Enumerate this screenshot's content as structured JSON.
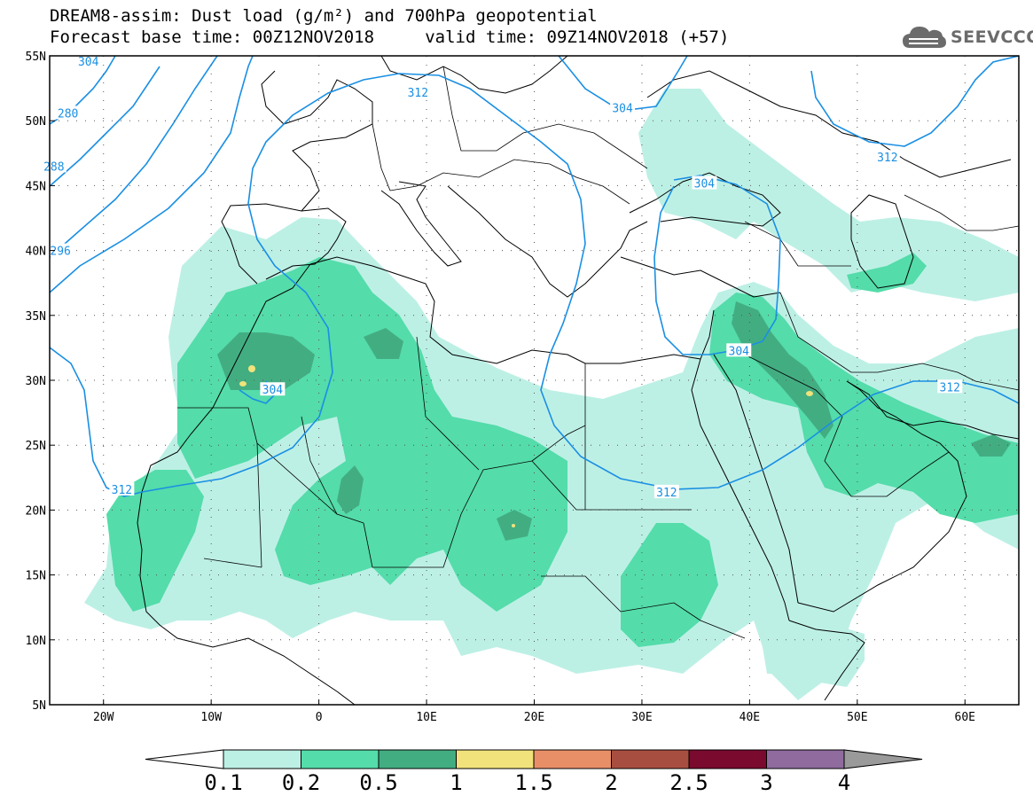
{
  "header": {
    "line1": "DREAM8-assim: Dust load (g/m²) and 700hPa geopotential",
    "line2": "Forecast base time: 00Z12NOV2018     valid time: 09Z14NOV2018 (+57)"
  },
  "logo": {
    "icon": "cloud-icon",
    "text": "SEEVCCC"
  },
  "map": {
    "lon_range": [
      -25,
      65
    ],
    "lat_range": [
      5,
      55
    ],
    "xticks": [
      {
        "v": -20,
        "label": "20W"
      },
      {
        "v": -10,
        "label": "10W"
      },
      {
        "v": 0,
        "label": "0"
      },
      {
        "v": 10,
        "label": "10E"
      },
      {
        "v": 20,
        "label": "20E"
      },
      {
        "v": 30,
        "label": "30E"
      },
      {
        "v": 40,
        "label": "40E"
      },
      {
        "v": 50,
        "label": "50E"
      },
      {
        "v": 60,
        "label": "60E"
      }
    ],
    "yticks": [
      {
        "v": 55,
        "label": "55N"
      },
      {
        "v": 50,
        "label": "50N"
      },
      {
        "v": 45,
        "label": "45N"
      },
      {
        "v": 40,
        "label": "40N"
      },
      {
        "v": 35,
        "label": "35N"
      },
      {
        "v": 30,
        "label": "30N"
      },
      {
        "v": 25,
        "label": "25N"
      },
      {
        "v": 20,
        "label": "20N"
      },
      {
        "v": 15,
        "label": "15N"
      },
      {
        "v": 10,
        "label": "10N"
      },
      {
        "v": 5,
        "label": "5N"
      }
    ],
    "grid": "dotted"
  },
  "contour_labels": [
    {
      "text": "304",
      "lon": -21.4,
      "lat": 54.6
    },
    {
      "text": "312",
      "lon": 9.2,
      "lat": 52.2
    },
    {
      "text": "304",
      "lon": 28.2,
      "lat": 51.0
    },
    {
      "text": "312",
      "lon": 52.8,
      "lat": 47.2
    },
    {
      "text": "280",
      "lon": -23.3,
      "lat": 50.6
    },
    {
      "text": "288",
      "lon": -24.6,
      "lat": 46.5
    },
    {
      "text": "296",
      "lon": -24.0,
      "lat": 40.0
    },
    {
      "text": "304",
      "lon": 35.8,
      "lat": 45.2
    },
    {
      "text": "304",
      "lon": 39.0,
      "lat": 32.3
    },
    {
      "text": "304",
      "lon": -4.3,
      "lat": 29.3
    },
    {
      "text": "312",
      "lon": 58.6,
      "lat": 29.5
    },
    {
      "text": "312",
      "lon": -18.3,
      "lat": 21.6
    },
    {
      "text": "312",
      "lon": 32.3,
      "lat": 21.4
    }
  ],
  "colorbar": {
    "labels": [
      "0.1",
      "0.2",
      "0.5",
      "1",
      "1.5",
      "2",
      "2.5",
      "3",
      "4"
    ],
    "colors": [
      "#bdf0e5",
      "#54dcaa",
      "#43ad82",
      "#f1e27b",
      "#e98f68",
      "#a84e40",
      "#7a0a2e",
      "#8f6b9e"
    ],
    "under_color": "#ffffff",
    "over_color": "#9a9a9a"
  },
  "colors": {
    "contour": "#1a8fe3",
    "land_border": "#000000"
  }
}
